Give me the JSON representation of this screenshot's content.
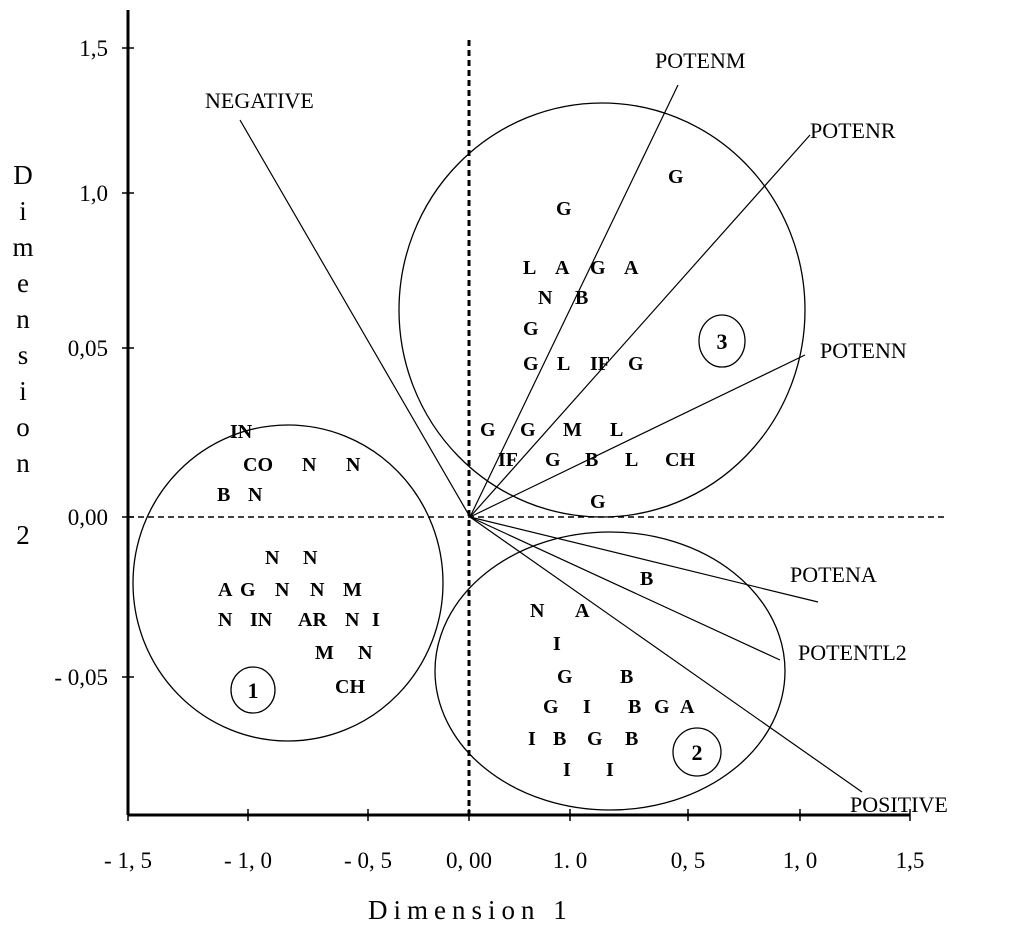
{
  "y_axis": {
    "title": "Dimension 2",
    "ticks": [
      "1,5",
      "1,0",
      "0,05",
      "0,00",
      "- 0,05"
    ]
  },
  "x_axis": {
    "title": "Dimension 1",
    "ticks": [
      "- 1, 5",
      "- 1, 0",
      "- 0, 5",
      "0, 00",
      "1. 0",
      "0, 5",
      "1, 0",
      "1,5"
    ]
  },
  "vectors": [
    "NEGATIVE",
    "POTENM",
    "POTENR",
    "POTENN",
    "POTENA",
    "POTENTL2",
    "POSITIVE"
  ],
  "clusters": [
    "1",
    "2",
    "3"
  ],
  "points": [
    {
      "label": "G"
    },
    {
      "label": "G"
    },
    {
      "label": "L"
    },
    {
      "label": "A"
    },
    {
      "label": "G",
      "color": "#1c1c8c"
    },
    {
      "label": "A"
    },
    {
      "label": "N"
    },
    {
      "label": "B"
    },
    {
      "label": "G"
    },
    {
      "label": "G"
    },
    {
      "label": "L"
    },
    {
      "label": "IF"
    },
    {
      "label": "G"
    },
    {
      "label": "G"
    },
    {
      "label": "G"
    },
    {
      "label": "M"
    },
    {
      "label": "L",
      "color": "#1c1c8c"
    },
    {
      "label": "IF"
    },
    {
      "label": "G"
    },
    {
      "label": "B"
    },
    {
      "label": "L"
    },
    {
      "label": "CH"
    },
    {
      "label": "G"
    },
    {
      "label": "IN"
    },
    {
      "label": "CO"
    },
    {
      "label": "N"
    },
    {
      "label": "N"
    },
    {
      "label": "B"
    },
    {
      "label": "N"
    },
    {
      "label": "N"
    },
    {
      "label": "N"
    },
    {
      "label": "A"
    },
    {
      "label": "G"
    },
    {
      "label": "N"
    },
    {
      "label": "N"
    },
    {
      "label": "M"
    },
    {
      "label": "N"
    },
    {
      "label": "IN"
    },
    {
      "label": "AR"
    },
    {
      "label": "N"
    },
    {
      "label": "I"
    },
    {
      "label": "M"
    },
    {
      "label": "N"
    },
    {
      "label": "CH"
    },
    {
      "label": "B"
    },
    {
      "label": "N"
    },
    {
      "label": "A"
    },
    {
      "label": "I"
    },
    {
      "label": "G"
    },
    {
      "label": "B"
    },
    {
      "label": "G"
    },
    {
      "label": "I"
    },
    {
      "label": "B"
    },
    {
      "label": "G"
    },
    {
      "label": "A"
    },
    {
      "label": "I"
    },
    {
      "label": "B"
    },
    {
      "label": "G"
    },
    {
      "label": "B"
    },
    {
      "label": "I"
    },
    {
      "label": "I"
    }
  ]
}
